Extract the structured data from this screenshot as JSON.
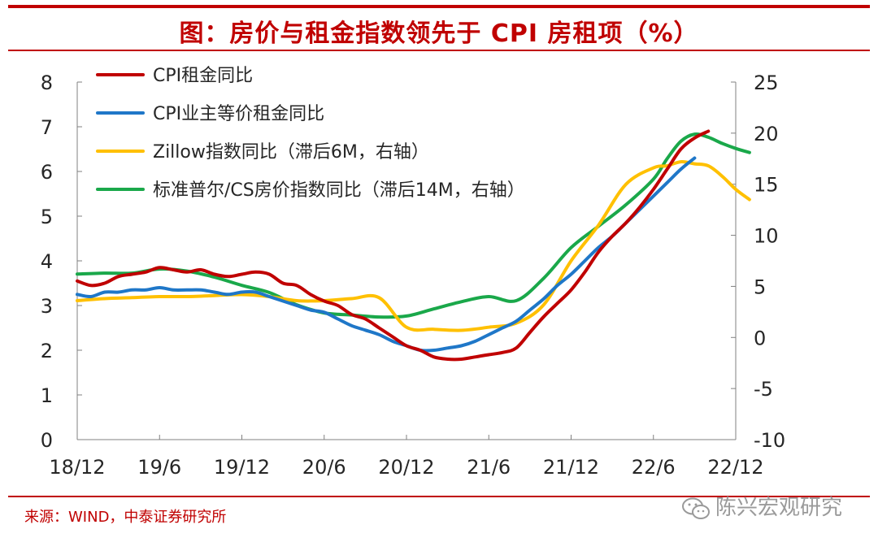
{
  "header": {
    "title": "图：房价与租金指数领先于 CPI 房租项（%）"
  },
  "footer": {
    "source": "来源：WIND，中泰证券研究所",
    "watermark": "陈兴宏观研究"
  },
  "chart_data": {
    "type": "line",
    "x_ticks": [
      "18/12",
      "19/6",
      "19/12",
      "20/6",
      "20/12",
      "21/6",
      "21/12",
      "22/6",
      "22/12"
    ],
    "y_left": {
      "min": 0,
      "max": 8,
      "ticks": [
        "0",
        "1",
        "2",
        "3",
        "4",
        "5",
        "6",
        "7",
        "8"
      ]
    },
    "y_right": {
      "min": -10,
      "max": 25,
      "ticks": [
        "-10",
        "-5",
        "0",
        "5",
        "10",
        "15",
        "20",
        "25"
      ]
    },
    "colors": {
      "rent": "#c00000",
      "oer": "#1f77c8",
      "zillow": "#ffc000",
      "cs": "#1aa84a"
    },
    "series": [
      {
        "name": "CPI租金同比",
        "axis": "left",
        "color": "#c00000",
        "x": [
          "2018-12",
          "2019-01",
          "2019-02",
          "2019-03",
          "2019-04",
          "2019-05",
          "2019-06",
          "2019-07",
          "2019-08",
          "2019-09",
          "2019-10",
          "2019-11",
          "2019-12",
          "2020-01",
          "2020-02",
          "2020-03",
          "2020-04",
          "2020-05",
          "2020-06",
          "2020-07",
          "2020-08",
          "2020-09",
          "2020-10",
          "2020-11",
          "2020-12",
          "2021-01",
          "2021-02",
          "2021-03",
          "2021-04",
          "2021-05",
          "2021-06",
          "2021-07",
          "2021-08",
          "2021-09",
          "2021-10",
          "2021-11",
          "2021-12",
          "2022-01",
          "2022-02",
          "2022-03",
          "2022-04",
          "2022-05",
          "2022-06",
          "2022-07",
          "2022-08",
          "2022-09",
          "2022-10"
        ],
        "y": [
          3.55,
          3.45,
          3.5,
          3.65,
          3.7,
          3.75,
          3.85,
          3.8,
          3.75,
          3.8,
          3.7,
          3.65,
          3.7,
          3.75,
          3.7,
          3.5,
          3.45,
          3.25,
          3.1,
          3.0,
          2.8,
          2.7,
          2.5,
          2.3,
          2.1,
          2.0,
          1.85,
          1.8,
          1.8,
          1.85,
          1.9,
          1.95,
          2.05,
          2.4,
          2.75,
          3.05,
          3.35,
          3.75,
          4.2,
          4.55,
          4.85,
          5.2,
          5.6,
          6.05,
          6.5,
          6.75,
          6.9
        ]
      },
      {
        "name": "CPI业主等价租金同比",
        "axis": "left",
        "color": "#1f77c8",
        "x": [
          "2018-12",
          "2019-01",
          "2019-02",
          "2019-03",
          "2019-04",
          "2019-05",
          "2019-06",
          "2019-07",
          "2019-08",
          "2019-09",
          "2019-10",
          "2019-11",
          "2019-12",
          "2020-01",
          "2020-02",
          "2020-03",
          "2020-04",
          "2020-05",
          "2020-06",
          "2020-07",
          "2020-08",
          "2020-09",
          "2020-10",
          "2020-11",
          "2020-12",
          "2021-01",
          "2021-02",
          "2021-03",
          "2021-04",
          "2021-05",
          "2021-06",
          "2021-07",
          "2021-08",
          "2021-09",
          "2021-10",
          "2021-11",
          "2021-12",
          "2022-01",
          "2022-02",
          "2022-03",
          "2022-04",
          "2022-05",
          "2022-06",
          "2022-07",
          "2022-08",
          "2022-09"
        ],
        "y": [
          3.25,
          3.2,
          3.3,
          3.3,
          3.35,
          3.35,
          3.4,
          3.35,
          3.35,
          3.35,
          3.3,
          3.25,
          3.3,
          3.3,
          3.2,
          3.1,
          3.0,
          2.9,
          2.85,
          2.7,
          2.55,
          2.45,
          2.35,
          2.2,
          2.1,
          2.0,
          2.0,
          2.05,
          2.1,
          2.2,
          2.35,
          2.5,
          2.65,
          2.9,
          3.15,
          3.45,
          3.7,
          4.0,
          4.3,
          4.55,
          4.85,
          5.15,
          5.45,
          5.75,
          6.05,
          6.3
        ]
      },
      {
        "name": "Zillow指数同比（滞后6M，右轴）",
        "axis": "right",
        "color": "#ffc000",
        "x": [
          "2018-12",
          "2019-02",
          "2019-04",
          "2019-06",
          "2019-08",
          "2019-10",
          "2019-12",
          "2020-02",
          "2020-04",
          "2020-06",
          "2020-08",
          "2020-10",
          "2020-12",
          "2021-02",
          "2021-04",
          "2021-06",
          "2021-08",
          "2021-10",
          "2021-12",
          "2022-02",
          "2022-04",
          "2022-06",
          "2022-07",
          "2022-08",
          "2022-09",
          "2022-10",
          "2022-11",
          "2022-12",
          "2023-01"
        ],
        "y": [
          3.6,
          3.8,
          3.9,
          4.0,
          4.0,
          4.1,
          4.2,
          4.0,
          3.6,
          3.6,
          3.8,
          3.9,
          1.0,
          0.8,
          0.7,
          1.0,
          1.4,
          3.2,
          7.5,
          11.0,
          15.0,
          16.6,
          16.8,
          17.2,
          17.0,
          16.8,
          15.8,
          14.5,
          13.5
        ]
      },
      {
        "name": "标准普尔/CS房价指数同比（滞后14M，右轴）",
        "axis": "right",
        "color": "#1aa84a",
        "x": [
          "2018-12",
          "2019-02",
          "2019-04",
          "2019-06",
          "2019-08",
          "2019-10",
          "2019-12",
          "2020-02",
          "2020-04",
          "2020-06",
          "2020-08",
          "2020-10",
          "2020-12",
          "2021-02",
          "2021-04",
          "2021-06",
          "2021-08",
          "2021-10",
          "2021-12",
          "2022-02",
          "2022-04",
          "2022-06",
          "2022-07",
          "2022-08",
          "2022-09",
          "2022-10",
          "2022-11",
          "2022-12",
          "2023-01"
        ],
        "y": [
          6.2,
          6.3,
          6.3,
          6.7,
          6.5,
          5.9,
          5.1,
          4.4,
          3.2,
          2.4,
          2.2,
          2.0,
          2.1,
          2.8,
          3.5,
          4.0,
          3.6,
          5.8,
          8.8,
          10.9,
          13.0,
          15.5,
          17.5,
          19.2,
          19.9,
          19.6,
          19.0,
          18.5,
          18.1
        ]
      }
    ]
  }
}
